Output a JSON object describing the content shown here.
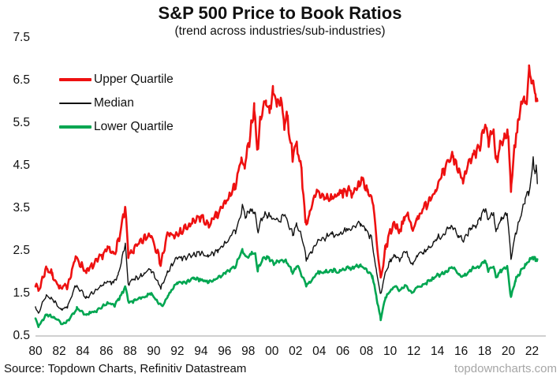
{
  "header": {
    "title": "S&P 500 Price to Book Ratios",
    "subtitle": "(trend across industries/sub-industries)"
  },
  "footer": {
    "source": "Source: Topdown Charts, Refinitiv Datastream",
    "watermark": "topdowncharts.com"
  },
  "legend": {
    "position": "top-left",
    "items": [
      {
        "label": "Upper Quartile",
        "color": "#ee1111"
      },
      {
        "label": "Median",
        "color": "#111111"
      },
      {
        "label": "Lower Quartile",
        "color": "#00a651"
      }
    ]
  },
  "chart_data": {
    "type": "line",
    "title": "S&P 500 Price to Book Ratios",
    "subtitle": "(trend across industries/sub-industries)",
    "xlabel": "",
    "ylabel": "",
    "grid": false,
    "legend_position": "top-left",
    "xlim": [
      1980,
      2023.3
    ],
    "ylim": [
      0.5,
      7.5
    ],
    "x_ticks": [
      {
        "year": 1980,
        "label": "80"
      },
      {
        "year": 1982,
        "label": "82"
      },
      {
        "year": 1984,
        "label": "84"
      },
      {
        "year": 1986,
        "label": "86"
      },
      {
        "year": 1988,
        "label": "88"
      },
      {
        "year": 1990,
        "label": "90"
      },
      {
        "year": 1992,
        "label": "92"
      },
      {
        "year": 1994,
        "label": "94"
      },
      {
        "year": 1996,
        "label": "96"
      },
      {
        "year": 1998,
        "label": "98"
      },
      {
        "year": 2000,
        "label": "00"
      },
      {
        "year": 2002,
        "label": "02"
      },
      {
        "year": 2004,
        "label": "04"
      },
      {
        "year": 2006,
        "label": "06"
      },
      {
        "year": 2008,
        "label": "08"
      },
      {
        "year": 2010,
        "label": "10"
      },
      {
        "year": 2012,
        "label": "12"
      },
      {
        "year": 2014,
        "label": "14"
      },
      {
        "year": 2016,
        "label": "16"
      },
      {
        "year": 2018,
        "label": "18"
      },
      {
        "year": 2020,
        "label": "20"
      },
      {
        "year": 2022,
        "label": "22"
      }
    ],
    "y_ticks": [
      "7.5",
      "6.5",
      "5.5",
      "4.5",
      "3.5",
      "2.5",
      "1.5",
      "0.5"
    ],
    "series": [
      {
        "name": "Upper Quartile",
        "color": "#ee1111",
        "points": [
          [
            1980.0,
            1.75
          ],
          [
            1980.25,
            1.55
          ],
          [
            1980.9,
            2.1
          ],
          [
            1981.4,
            1.95
          ],
          [
            1982.1,
            1.6
          ],
          [
            1982.7,
            1.68
          ],
          [
            1983.4,
            2.35
          ],
          [
            1984.3,
            2.0
          ],
          [
            1985.2,
            2.25
          ],
          [
            1986.1,
            2.55
          ],
          [
            1986.6,
            2.42
          ],
          [
            1987.0,
            2.7
          ],
          [
            1987.6,
            3.5
          ],
          [
            1987.85,
            2.4
          ],
          [
            1988.3,
            2.52
          ],
          [
            1989.2,
            2.78
          ],
          [
            1989.8,
            2.9
          ],
          [
            1990.6,
            2.2
          ],
          [
            1991.2,
            2.9
          ],
          [
            1991.9,
            2.85
          ],
          [
            1992.6,
            3.0
          ],
          [
            1993.3,
            3.15
          ],
          [
            1994.0,
            3.3
          ],
          [
            1994.6,
            3.1
          ],
          [
            1995.3,
            3.3
          ],
          [
            1996.0,
            3.6
          ],
          [
            1996.8,
            3.95
          ],
          [
            1997.4,
            4.6
          ],
          [
            1997.7,
            4.45
          ],
          [
            1998.0,
            4.95
          ],
          [
            1998.5,
            5.9
          ],
          [
            1998.75,
            4.85
          ],
          [
            1999.1,
            5.7
          ],
          [
            1999.5,
            6.05
          ],
          [
            1999.8,
            5.75
          ],
          [
            2000.1,
            6.25
          ],
          [
            2000.45,
            5.9
          ],
          [
            2000.7,
            6.1
          ],
          [
            2001.05,
            5.5
          ],
          [
            2001.3,
            5.65
          ],
          [
            2001.75,
            4.7
          ],
          [
            2002.1,
            5.0
          ],
          [
            2002.5,
            4.4
          ],
          [
            2002.85,
            3.15
          ],
          [
            2003.2,
            3.35
          ],
          [
            2003.8,
            3.9
          ],
          [
            2004.4,
            3.75
          ],
          [
            2005.0,
            3.72
          ],
          [
            2005.6,
            3.82
          ],
          [
            2006.2,
            3.9
          ],
          [
            2006.8,
            3.85
          ],
          [
            2007.3,
            4.05
          ],
          [
            2007.7,
            4.15
          ],
          [
            2008.1,
            3.9
          ],
          [
            2008.6,
            3.55
          ],
          [
            2008.85,
            2.7
          ],
          [
            2009.2,
            1.8
          ],
          [
            2009.6,
            2.55
          ],
          [
            2010.0,
            2.95
          ],
          [
            2010.4,
            3.15
          ],
          [
            2010.75,
            2.95
          ],
          [
            2011.2,
            3.25
          ],
          [
            2011.55,
            3.35
          ],
          [
            2011.85,
            2.95
          ],
          [
            2012.3,
            3.3
          ],
          [
            2012.75,
            3.45
          ],
          [
            2013.3,
            3.7
          ],
          [
            2013.85,
            3.95
          ],
          [
            2014.4,
            4.25
          ],
          [
            2015.0,
            4.6
          ],
          [
            2015.3,
            4.75
          ],
          [
            2015.75,
            4.4
          ],
          [
            2016.15,
            4.2
          ],
          [
            2016.6,
            4.5
          ],
          [
            2017.1,
            4.7
          ],
          [
            2017.6,
            4.95
          ],
          [
            2018.05,
            5.45
          ],
          [
            2018.3,
            5.05
          ],
          [
            2018.75,
            5.35
          ],
          [
            2018.95,
            4.5
          ],
          [
            2019.3,
            5.0
          ],
          [
            2019.65,
            5.1
          ],
          [
            2019.95,
            5.35
          ],
          [
            2020.22,
            3.95
          ],
          [
            2020.5,
            4.9
          ],
          [
            2020.8,
            5.45
          ],
          [
            2021.1,
            5.95
          ],
          [
            2021.35,
            6.15
          ],
          [
            2021.55,
            5.95
          ],
          [
            2021.75,
            6.8
          ],
          [
            2021.95,
            6.35
          ],
          [
            2022.1,
            6.6
          ],
          [
            2022.3,
            6.0
          ],
          [
            2022.45,
            6.15
          ]
        ]
      },
      {
        "name": "Median",
        "color": "#111111",
        "points": [
          [
            1980.0,
            1.2
          ],
          [
            1980.25,
            1.05
          ],
          [
            1980.9,
            1.45
          ],
          [
            1981.5,
            1.35
          ],
          [
            1982.2,
            1.12
          ],
          [
            1982.7,
            1.2
          ],
          [
            1983.4,
            1.7
          ],
          [
            1984.3,
            1.4
          ],
          [
            1985.2,
            1.57
          ],
          [
            1986.1,
            1.8
          ],
          [
            1986.6,
            1.73
          ],
          [
            1987.0,
            1.95
          ],
          [
            1987.6,
            2.65
          ],
          [
            1987.85,
            1.72
          ],
          [
            1988.3,
            1.82
          ],
          [
            1989.2,
            1.97
          ],
          [
            1989.8,
            2.05
          ],
          [
            1990.6,
            1.62
          ],
          [
            1991.2,
            2.0
          ],
          [
            1992.0,
            2.35
          ],
          [
            1992.7,
            2.32
          ],
          [
            1993.4,
            2.42
          ],
          [
            1994.1,
            2.45
          ],
          [
            1994.6,
            2.35
          ],
          [
            1995.4,
            2.52
          ],
          [
            1996.1,
            2.7
          ],
          [
            1996.9,
            2.95
          ],
          [
            1997.5,
            3.5
          ],
          [
            1997.8,
            3.3
          ],
          [
            1998.2,
            3.45
          ],
          [
            1998.55,
            3.4
          ],
          [
            1998.8,
            2.95
          ],
          [
            1999.2,
            3.3
          ],
          [
            1999.6,
            3.35
          ],
          [
            2000.1,
            3.25
          ],
          [
            2000.6,
            3.2
          ],
          [
            2001.1,
            3.35
          ],
          [
            2001.75,
            2.9
          ],
          [
            2002.1,
            3.1
          ],
          [
            2002.5,
            2.85
          ],
          [
            2002.9,
            2.3
          ],
          [
            2003.3,
            2.45
          ],
          [
            2003.9,
            2.75
          ],
          [
            2004.5,
            2.8
          ],
          [
            2005.1,
            2.9
          ],
          [
            2005.7,
            2.87
          ],
          [
            2006.3,
            3.0
          ],
          [
            2006.9,
            3.05
          ],
          [
            2007.5,
            3.15
          ],
          [
            2007.9,
            3.0
          ],
          [
            2008.4,
            2.8
          ],
          [
            2008.85,
            2.0
          ],
          [
            2009.2,
            1.45
          ],
          [
            2009.6,
            2.0
          ],
          [
            2010.0,
            2.25
          ],
          [
            2010.45,
            2.42
          ],
          [
            2010.8,
            2.28
          ],
          [
            2011.3,
            2.5
          ],
          [
            2011.85,
            2.15
          ],
          [
            2012.3,
            2.4
          ],
          [
            2012.8,
            2.45
          ],
          [
            2013.4,
            2.6
          ],
          [
            2014.0,
            2.8
          ],
          [
            2014.6,
            2.9
          ],
          [
            2015.2,
            3.1
          ],
          [
            2015.8,
            2.85
          ],
          [
            2016.2,
            2.75
          ],
          [
            2016.8,
            3.0
          ],
          [
            2017.4,
            3.15
          ],
          [
            2018.05,
            3.5
          ],
          [
            2018.3,
            3.2
          ],
          [
            2018.75,
            3.4
          ],
          [
            2018.95,
            2.95
          ],
          [
            2019.4,
            3.25
          ],
          [
            2019.9,
            3.4
          ],
          [
            2020.22,
            2.3
          ],
          [
            2020.6,
            2.9
          ],
          [
            2021.0,
            3.3
          ],
          [
            2021.4,
            3.7
          ],
          [
            2021.7,
            3.85
          ],
          [
            2021.95,
            4.25
          ],
          [
            2022.1,
            4.65
          ],
          [
            2022.25,
            4.3
          ],
          [
            2022.35,
            4.45
          ],
          [
            2022.45,
            4.1
          ]
        ]
      },
      {
        "name": "Lower Quartile",
        "color": "#00a651",
        "points": [
          [
            1980.0,
            0.92
          ],
          [
            1980.25,
            0.72
          ],
          [
            1980.9,
            1.0
          ],
          [
            1981.5,
            0.95
          ],
          [
            1982.3,
            0.78
          ],
          [
            1982.8,
            0.86
          ],
          [
            1983.5,
            1.15
          ],
          [
            1984.3,
            1.0
          ],
          [
            1985.2,
            1.1
          ],
          [
            1986.1,
            1.28
          ],
          [
            1986.7,
            1.22
          ],
          [
            1987.0,
            1.35
          ],
          [
            1987.6,
            1.65
          ],
          [
            1987.9,
            1.28
          ],
          [
            1988.4,
            1.33
          ],
          [
            1989.2,
            1.42
          ],
          [
            1989.8,
            1.5
          ],
          [
            1990.7,
            1.18
          ],
          [
            1991.2,
            1.45
          ],
          [
            1992.0,
            1.75
          ],
          [
            1992.7,
            1.75
          ],
          [
            1993.4,
            1.85
          ],
          [
            1994.2,
            1.8
          ],
          [
            1994.7,
            1.76
          ],
          [
            1995.4,
            1.85
          ],
          [
            1996.1,
            2.0
          ],
          [
            1996.9,
            2.12
          ],
          [
            1997.5,
            2.55
          ],
          [
            1997.8,
            2.35
          ],
          [
            1998.3,
            2.45
          ],
          [
            1998.6,
            2.4
          ],
          [
            1998.8,
            2.05
          ],
          [
            1999.2,
            2.3
          ],
          [
            1999.6,
            2.35
          ],
          [
            2000.1,
            2.2
          ],
          [
            2000.6,
            2.25
          ],
          [
            2001.1,
            2.3
          ],
          [
            2001.75,
            2.0
          ],
          [
            2002.2,
            2.15
          ],
          [
            2002.9,
            1.7
          ],
          [
            2003.3,
            1.78
          ],
          [
            2003.9,
            2.0
          ],
          [
            2004.5,
            2.0
          ],
          [
            2005.1,
            2.05
          ],
          [
            2005.7,
            2.0
          ],
          [
            2006.3,
            2.1
          ],
          [
            2006.9,
            2.1
          ],
          [
            2007.5,
            2.15
          ],
          [
            2008.0,
            2.05
          ],
          [
            2008.5,
            1.9
          ],
          [
            2008.85,
            1.4
          ],
          [
            2009.2,
            0.9
          ],
          [
            2009.6,
            1.4
          ],
          [
            2010.0,
            1.55
          ],
          [
            2010.45,
            1.67
          ],
          [
            2010.8,
            1.57
          ],
          [
            2011.3,
            1.7
          ],
          [
            2011.85,
            1.5
          ],
          [
            2012.3,
            1.65
          ],
          [
            2012.8,
            1.7
          ],
          [
            2013.4,
            1.8
          ],
          [
            2014.0,
            1.92
          ],
          [
            2014.7,
            2.0
          ],
          [
            2015.2,
            2.12
          ],
          [
            2015.8,
            1.95
          ],
          [
            2016.2,
            1.9
          ],
          [
            2016.8,
            2.05
          ],
          [
            2017.4,
            2.12
          ],
          [
            2018.05,
            2.25
          ],
          [
            2018.3,
            2.05
          ],
          [
            2018.75,
            2.15
          ],
          [
            2018.95,
            1.85
          ],
          [
            2019.4,
            2.05
          ],
          [
            2019.9,
            2.12
          ],
          [
            2020.22,
            1.4
          ],
          [
            2020.6,
            1.82
          ],
          [
            2021.0,
            2.0
          ],
          [
            2021.4,
            2.15
          ],
          [
            2021.8,
            2.28
          ],
          [
            2022.1,
            2.35
          ],
          [
            2022.3,
            2.28
          ],
          [
            2022.45,
            2.3
          ]
        ]
      }
    ]
  }
}
